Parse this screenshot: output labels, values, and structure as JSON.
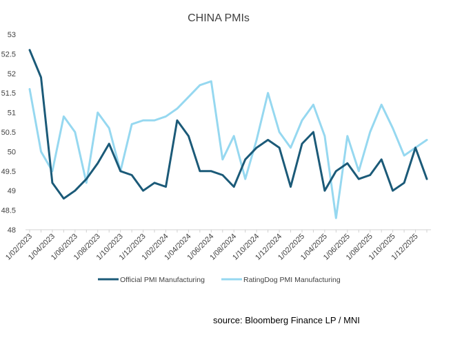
{
  "chart_data": {
    "type": "line",
    "title": "CHINA PMIs",
    "xlabel": "",
    "ylabel": "",
    "ylim": [
      48,
      53
    ],
    "yticks": [
      48,
      48.5,
      49,
      49.5,
      50,
      50.5,
      51,
      51.5,
      52,
      52.5,
      53
    ],
    "ytick_labels": [
      "48",
      "48.5",
      "49",
      "49.5",
      "50",
      "50.5",
      "51",
      "51.5",
      "52",
      "52.5",
      "53"
    ],
    "grid": false,
    "legend_position": "bottom",
    "x": [
      "1/02/2023",
      "1/03/2023",
      "1/04/2023",
      "1/05/2023",
      "1/06/2023",
      "1/07/2023",
      "1/08/2023",
      "1/09/2023",
      "1/10/2023",
      "1/11/2023",
      "1/12/2023",
      "1/01/2024",
      "1/02/2024",
      "1/03/2024",
      "1/04/2024",
      "1/05/2024",
      "1/06/2024",
      "1/07/2024",
      "1/08/2024",
      "1/09/2024",
      "1/10/2024",
      "1/11/2024",
      "1/12/2024",
      "1/01/2025",
      "1/02/2025",
      "1/03/2025",
      "1/04/2025",
      "1/05/2025",
      "1/06/2025",
      "1/07/2025",
      "1/08/2025",
      "1/09/2025",
      "1/10/2025",
      "1/11/2025",
      "1/12/2025",
      "1/01/2026"
    ],
    "tick_labels": [
      "1/02/2023",
      "1/04/2023",
      "1/06/2023",
      "1/08/2023",
      "1/10/2023",
      "1/12/2023",
      "1/02/2024",
      "1/04/2024",
      "1/06/2024",
      "1/08/2024",
      "1/10/2024",
      "1/12/2024",
      "1/02/2025",
      "1/04/2025",
      "1/06/2025",
      "1/08/2025",
      "1/10/2025",
      "1/12/2025"
    ],
    "series": [
      {
        "name": "Official PMI Manufacturing",
        "color": "#1b5a78",
        "values": [
          52.6,
          51.9,
          49.2,
          48.8,
          49.0,
          49.3,
          49.7,
          50.2,
          49.5,
          49.4,
          49.0,
          49.2,
          49.1,
          50.8,
          50.4,
          49.5,
          49.5,
          49.4,
          49.1,
          49.8,
          50.1,
          50.3,
          50.1,
          49.1,
          50.2,
          50.5,
          49.0,
          49.5,
          49.7,
          49.3,
          49.4,
          49.8,
          49.0,
          49.2,
          50.1,
          49.3
        ]
      },
      {
        "name": "RatingDog PMI Manufacturing",
        "color": "#96d8f0",
        "values": [
          51.6,
          50.0,
          49.5,
          50.9,
          50.5,
          49.2,
          51.0,
          50.6,
          49.5,
          50.7,
          50.8,
          50.8,
          50.9,
          51.1,
          51.4,
          51.7,
          51.8,
          49.8,
          50.4,
          49.3,
          50.3,
          51.5,
          50.5,
          50.1,
          50.8,
          51.2,
          50.4,
          48.3,
          50.4,
          49.5,
          50.5,
          51.2,
          50.6,
          49.9,
          50.1,
          50.3
        ]
      }
    ]
  },
  "source_text": "source:  Bloomberg Finance LP /  MNI"
}
